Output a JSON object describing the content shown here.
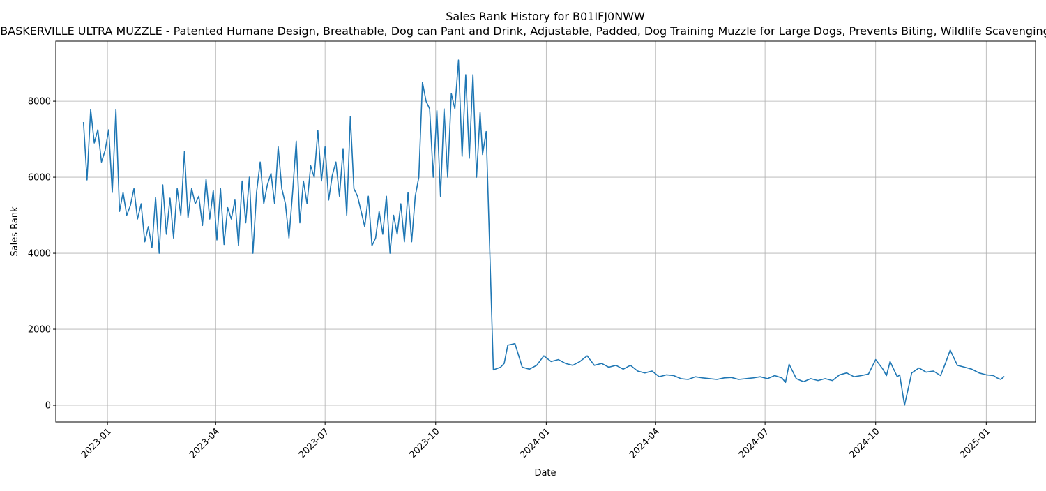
{
  "chart_data": {
    "type": "line",
    "title": "Sales Rank History for B01IFJ0NWW",
    "subtitle": "BASKERVILLE ULTRA MUZZLE - Patented Humane Design, Breathable, Dog can Pant and Drink, Adjustable, Padded, Dog Training Muzzle for Large Dogs, Prevents Biting, Wildlife Scavenging",
    "xlabel": "Date",
    "ylabel": "Sales Rank",
    "xlim": [
      "2022-11-19",
      "2025-02-11"
    ],
    "ylim": [
      -440,
      9580
    ],
    "grid": true,
    "line_color": "#1f77b4",
    "x_ticks": [
      {
        "date": "2023-01-01",
        "label": "2023-01"
      },
      {
        "date": "2023-04-01",
        "label": "2023-04"
      },
      {
        "date": "2023-07-01",
        "label": "2023-07"
      },
      {
        "date": "2023-10-01",
        "label": "2023-10"
      },
      {
        "date": "2024-01-01",
        "label": "2024-01"
      },
      {
        "date": "2024-04-01",
        "label": "2024-04"
      },
      {
        "date": "2024-07-01",
        "label": "2024-07"
      },
      {
        "date": "2024-10-01",
        "label": "2024-10"
      },
      {
        "date": "2025-01-01",
        "label": "2025-01"
      }
    ],
    "y_ticks": [
      0,
      2000,
      4000,
      6000,
      8000
    ],
    "series": [
      {
        "x": [
          "2022-12-12",
          "2022-12-15",
          "2022-12-18",
          "2022-12-21",
          "2022-12-24",
          "2022-12-27",
          "2022-12-30",
          "2023-01-02",
          "2023-01-05",
          "2023-01-08",
          "2023-01-11",
          "2023-01-14",
          "2023-01-17",
          "2023-01-20",
          "2023-01-23",
          "2023-01-26",
          "2023-01-29",
          "2023-02-01",
          "2023-02-04",
          "2023-02-07",
          "2023-02-10",
          "2023-02-13",
          "2023-02-16",
          "2023-02-19",
          "2023-02-22",
          "2023-02-25",
          "2023-02-28",
          "2023-03-03",
          "2023-03-06",
          "2023-03-09",
          "2023-03-12",
          "2023-03-15",
          "2023-03-18",
          "2023-03-21",
          "2023-03-24",
          "2023-03-27",
          "2023-03-30",
          "2023-04-02",
          "2023-04-05",
          "2023-04-08",
          "2023-04-11",
          "2023-04-14",
          "2023-04-17",
          "2023-04-20",
          "2023-04-23",
          "2023-04-26",
          "2023-04-29",
          "2023-05-02",
          "2023-05-05",
          "2023-05-08",
          "2023-05-11",
          "2023-05-14",
          "2023-05-17",
          "2023-05-20",
          "2023-05-23",
          "2023-05-26",
          "2023-05-29",
          "2023-06-01",
          "2023-06-04",
          "2023-06-07",
          "2023-06-10",
          "2023-06-13",
          "2023-06-16",
          "2023-06-19",
          "2023-06-22",
          "2023-06-25",
          "2023-06-28",
          "2023-07-01",
          "2023-07-04",
          "2023-07-07",
          "2023-07-10",
          "2023-07-13",
          "2023-07-16",
          "2023-07-19",
          "2023-07-22",
          "2023-07-25",
          "2023-07-28",
          "2023-07-31",
          "2023-08-03",
          "2023-08-06",
          "2023-08-09",
          "2023-08-12",
          "2023-08-15",
          "2023-08-18",
          "2023-08-21",
          "2023-08-24",
          "2023-08-27",
          "2023-08-30",
          "2023-09-02",
          "2023-09-05",
          "2023-09-08",
          "2023-09-11",
          "2023-09-14",
          "2023-09-17",
          "2023-09-20",
          "2023-09-23",
          "2023-09-26",
          "2023-09-29",
          "2023-10-02",
          "2023-10-05",
          "2023-10-08",
          "2023-10-11",
          "2023-10-14",
          "2023-10-17",
          "2023-10-20",
          "2023-10-23",
          "2023-10-26",
          "2023-10-29",
          "2023-11-01",
          "2023-11-04",
          "2023-11-07",
          "2023-11-09",
          "2023-11-12",
          "2023-11-18",
          "2023-11-24",
          "2023-11-27",
          "2023-11-30",
          "2023-12-06",
          "2023-12-12",
          "2023-12-18",
          "2023-12-24",
          "2023-12-30",
          "2024-01-05",
          "2024-01-11",
          "2024-01-17",
          "2024-01-23",
          "2024-01-29",
          "2024-02-04",
          "2024-02-10",
          "2024-02-16",
          "2024-02-22",
          "2024-02-28",
          "2024-03-05",
          "2024-03-11",
          "2024-03-17",
          "2024-03-23",
          "2024-03-29",
          "2024-04-04",
          "2024-04-10",
          "2024-04-16",
          "2024-04-22",
          "2024-04-28",
          "2024-05-04",
          "2024-05-10",
          "2024-05-16",
          "2024-05-22",
          "2024-05-28",
          "2024-06-03",
          "2024-06-09",
          "2024-06-15",
          "2024-06-21",
          "2024-06-27",
          "2024-07-03",
          "2024-07-09",
          "2024-07-15",
          "2024-07-18",
          "2024-07-21",
          "2024-07-27",
          "2024-08-02",
          "2024-08-08",
          "2024-08-14",
          "2024-08-20",
          "2024-08-26",
          "2024-09-01",
          "2024-09-07",
          "2024-09-13",
          "2024-09-19",
          "2024-09-25",
          "2024-10-01",
          "2024-10-07",
          "2024-10-10",
          "2024-10-13",
          "2024-10-19",
          "2024-10-21",
          "2024-10-25",
          "2024-10-31",
          "2024-11-06",
          "2024-11-12",
          "2024-11-18",
          "2024-11-24",
          "2024-11-28",
          "2024-12-02",
          "2024-12-08",
          "2024-12-14",
          "2024-12-20",
          "2024-12-26",
          "2025-01-01",
          "2025-01-07",
          "2025-01-10",
          "2025-01-13",
          "2025-01-16"
        ],
        "y": [
          7450,
          5930,
          7780,
          6900,
          7250,
          6400,
          6700,
          7250,
          5600,
          7780,
          5100,
          5600,
          5000,
          5250,
          5700,
          4900,
          5300,
          4300,
          4700,
          4150,
          5470,
          4000,
          5800,
          4500,
          5450,
          4400,
          5700,
          5000,
          6680,
          4930,
          5700,
          5300,
          5500,
          4730,
          5950,
          4900,
          5650,
          4350,
          5700,
          4230,
          5200,
          4900,
          5400,
          4200,
          5900,
          4800,
          6000,
          4000,
          5600,
          6400,
          5300,
          5800,
          6100,
          5300,
          6800,
          5700,
          5300,
          4400,
          5600,
          6950,
          4800,
          5900,
          5300,
          6300,
          6000,
          7230,
          5900,
          6800,
          5400,
          6050,
          6400,
          5500,
          6750,
          5000,
          7600,
          5700,
          5500,
          5100,
          4700,
          5500,
          4200,
          4400,
          5100,
          4500,
          5500,
          4000,
          5000,
          4500,
          5300,
          4300,
          5600,
          4300,
          5500,
          6000,
          8500,
          8000,
          7800,
          6000,
          7750,
          5500,
          7800,
          6000,
          8200,
          7800,
          9080,
          6550,
          8700,
          6500,
          8700,
          6000,
          7700,
          6600,
          7200,
          930,
          1000,
          1100,
          1580,
          1620,
          1000,
          950,
          1050,
          1300,
          1150,
          1200,
          1100,
          1050,
          1150,
          1300,
          1050,
          1100,
          1000,
          1050,
          950,
          1050,
          900,
          850,
          900,
          750,
          800,
          780,
          700,
          680,
          750,
          720,
          700,
          680,
          720,
          730,
          680,
          700,
          720,
          750,
          700,
          780,
          720,
          600,
          1080,
          700,
          620,
          700,
          650,
          700,
          650,
          800,
          850,
          750,
          780,
          820,
          1200,
          950,
          780,
          1150,
          750,
          800,
          0,
          850,
          980,
          870,
          900,
          780,
          1100,
          1450,
          1050,
          1000,
          950,
          850,
          800,
          780,
          720,
          680,
          760
        ]
      }
    ]
  }
}
